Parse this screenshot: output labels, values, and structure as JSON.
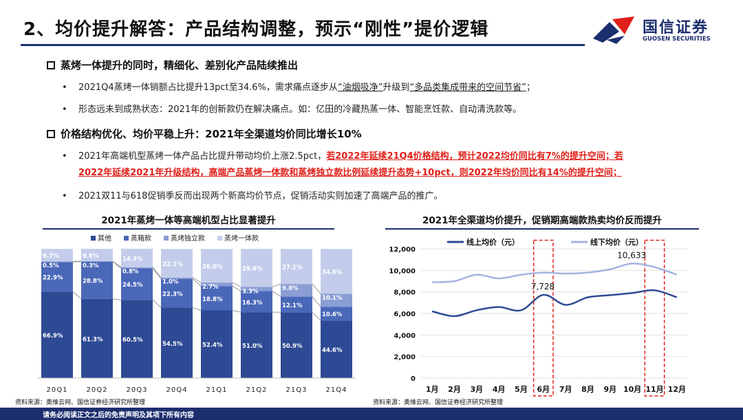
{
  "header": {
    "title": "2、均价提升解答：产品结构调整，预示“刚性”提价逻辑",
    "logo_cn": "国信证券",
    "logo_en": "GUOSEN SECURITIES"
  },
  "sections": [
    {
      "heading": "蒸烤一体提升的同时，精细化、差别化产品陆续推出",
      "bullets": [
        {
          "pre": "2021Q4蒸烤一体销额占比提升13pct至34.6%，需求痛点逐步从",
          "u1": "“油烟吸净”",
          "mid": "升级到",
          "u2": "“多品类集成带来的空间节省”",
          "post": "；"
        },
        {
          "text": "形态远未到成熟状态：2021年的创新款仍在解决痛点。如：亿田的冷藏热蒸一体、智能烹饪款、自动清洗款等。"
        }
      ]
    },
    {
      "heading": "价格结构优化、均价平稳上升：2021年全渠道均价同比增长10%",
      "bullets": [
        {
          "pre": "2021年高端机型蒸烤一体产品占比提升带动均价上涨2.5pct，",
          "red1": "若2022年延续21Q4价格结构，预计2022均价同比有7%的提升空间；若",
          "red2": "2022年延续2021年升级结构，高端产品蒸烤一体款和蒸烤独立款比例延续提升态势+10pct，则2022年均价同比有14%的提升空间；"
        },
        {
          "text": "2021双11与618促销季反而出现两个新高均价节点，促销活动实则加速了高端产品的推广。"
        }
      ]
    }
  ],
  "left_panel_title": "2021年蒸烤一体等高端机型占比显著提升",
  "right_panel_title": "2021年全渠道均价提升，促销期高端款热卖均价反而提升",
  "source_left": "资料来源：奥维云网、国信证券经济研究所整理",
  "source_right": "资料来源：奥维云网、国信证券经济研究所整理",
  "footer": "请务必阅读正文之后的免责声明及其项下所有内容",
  "colors": {
    "navy": "#1c2e6e",
    "red": "#e0201a"
  },
  "chart_data": [
    {
      "type": "bar",
      "stacked": "100%",
      "title": "2021年蒸烤一体等高端机型占比显著提升",
      "categories": [
        "20Q1",
        "20Q2",
        "20Q3",
        "20Q4",
        "21Q1",
        "21Q2",
        "21Q3",
        "21Q4"
      ],
      "series": [
        {
          "name": "其他",
          "color": "#2e4a94",
          "values": [
            66.9,
            61.3,
            60.5,
            54.5,
            52.4,
            51.0,
            50.9,
            44.6
          ]
        },
        {
          "name": "蒸箱款",
          "color": "#4a68b8",
          "values": [
            22.9,
            28.8,
            24.5,
            22.3,
            18.8,
            16.3,
            12.1,
            10.6
          ]
        },
        {
          "name": "蒸烤独立款",
          "color": "#8a9ed4",
          "values": [
            0.5,
            0.3,
            0.8,
            1.0,
            2.7,
            3.3,
            9.8,
            10.1
          ]
        },
        {
          "name": "蒸烤一体款",
          "color": "#c3cdeb",
          "values": [
            9.7,
            9.6,
            14.3,
            22.1,
            26.0,
            29.4,
            27.1,
            34.6
          ]
        }
      ],
      "labels": [
        [
          "66.9%",
          "61.3%",
          "60.5%",
          "54.5%",
          "52.4%",
          "51.0%",
          "50.9%",
          "44.6%"
        ],
        [
          "22.9%",
          "28.8%",
          "24.5%",
          "22.3%",
          "18.8%",
          "16.3%",
          "12.1%",
          "10.6%"
        ],
        [
          "0.5%",
          "0.3%",
          "0.8%",
          "1.0%",
          "2.7%",
          "3.3%",
          "9.8%",
          "10.1%"
        ],
        [
          "9.7%",
          "9.6%",
          "14.3%",
          "22.1%",
          "26.0%",
          "29.4%",
          "27.1%",
          "34.6%"
        ]
      ],
      "ylim": [
        0,
        100
      ],
      "legend": "top"
    },
    {
      "type": "line",
      "title": "2021年全渠道均价提升，促销期高端款热卖均价反而提升",
      "categories": [
        "1月",
        "2月",
        "3月",
        "4月",
        "5月",
        "6月",
        "7月",
        "8月",
        "9月",
        "10月",
        "11月",
        "12月"
      ],
      "series": [
        {
          "name": "线上均价（元）",
          "color": "#2e4a94",
          "values": [
            6200,
            5750,
            6300,
            6600,
            6300,
            7728,
            6800,
            7500,
            7700,
            7900,
            8150,
            7500
          ]
        },
        {
          "name": "线下均价（元）",
          "color": "#a4b3e0",
          "values": [
            8900,
            9000,
            9600,
            9250,
            9600,
            9800,
            9700,
            9800,
            10100,
            10633,
            10300,
            9600
          ]
        }
      ],
      "ylim": [
        0,
        12000
      ],
      "yticks": [
        "0",
        "2,000",
        "4,000",
        "6,000",
        "8,000",
        "10,000",
        "12,000"
      ],
      "annotations": [
        {
          "label": "7,728"
        },
        {
          "label": "10,633"
        }
      ],
      "highlight": [
        "6月",
        "11月"
      ],
      "grid": true,
      "legend": "top"
    }
  ]
}
